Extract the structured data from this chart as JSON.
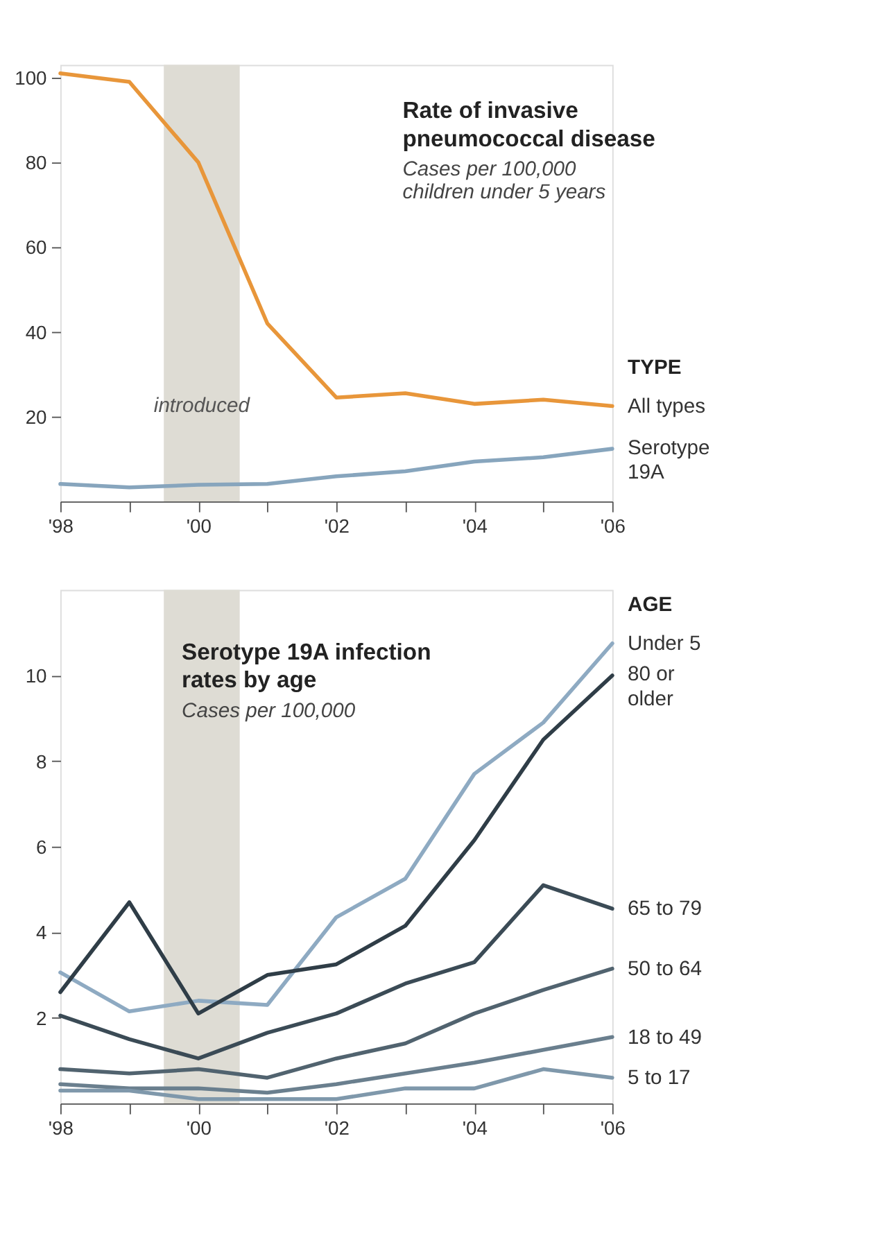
{
  "chart_data": [
    {
      "type": "line",
      "title": "Rate of invasive pneumococcal disease",
      "subtitle": "Cases per 100,000 children under 5 years",
      "legend_title": "TYPE",
      "legend": "right",
      "grid": false,
      "x": [
        1998,
        1999,
        2000,
        2001,
        2002,
        2003,
        2004,
        2005,
        2006
      ],
      "xlim": [
        1998,
        2006
      ],
      "xticks": [
        {
          "value": 1998,
          "label": "'98"
        },
        {
          "value": 1999,
          "label": null
        },
        {
          "value": 2000,
          "label": "'00"
        },
        {
          "value": 2001,
          "label": null
        },
        {
          "value": 2002,
          "label": "'02"
        },
        {
          "value": 2003,
          "label": null
        },
        {
          "value": 2004,
          "label": "'04"
        },
        {
          "value": 2005,
          "label": null
        },
        {
          "value": 2006,
          "label": "'06"
        }
      ],
      "ylim": [
        0,
        103
      ],
      "yticks": [
        20,
        40,
        60,
        80,
        100
      ],
      "bands": [
        {
          "axis": "x",
          "from": 1999.5,
          "to": 2000.6,
          "label": "introduced",
          "color": "#dedcd4"
        }
      ],
      "series": [
        {
          "name": "All types",
          "color": "#e8963a",
          "values": [
            101,
            99,
            80,
            42,
            24.5,
            25.5,
            23,
            24,
            22.5
          ]
        },
        {
          "name": "Serotype 19A",
          "color": "#87a5bd",
          "values": [
            4.1,
            3.3,
            3.9,
            4.1,
            5.9,
            7.1,
            9.4,
            10.4,
            12.4
          ]
        }
      ]
    },
    {
      "type": "line",
      "title": "Serotype 19A infection rates by age",
      "subtitle": "Cases per 100,000",
      "legend_title": "AGE",
      "legend": "right",
      "grid": false,
      "x": [
        1998,
        1999,
        2000,
        2001,
        2002,
        2003,
        2004,
        2005,
        2006
      ],
      "xlim": [
        1998,
        2006
      ],
      "xticks": [
        {
          "value": 1998,
          "label": "'98"
        },
        {
          "value": 1999,
          "label": null
        },
        {
          "value": 2000,
          "label": "'00"
        },
        {
          "value": 2001,
          "label": null
        },
        {
          "value": 2002,
          "label": "'02"
        },
        {
          "value": 2003,
          "label": null
        },
        {
          "value": 2004,
          "label": "'04"
        },
        {
          "value": 2005,
          "label": null
        },
        {
          "value": 2006,
          "label": "'06"
        }
      ],
      "ylim": [
        0,
        12
      ],
      "yticks": [
        2,
        4,
        6,
        8,
        10
      ],
      "bands": [
        {
          "axis": "x",
          "from": 1999.5,
          "to": 2000.6,
          "color": "#dedcd4"
        }
      ],
      "series": [
        {
          "name": "Under 5",
          "color": "#8eaac2",
          "values": [
            3.06,
            2.15,
            2.4,
            2.3,
            4.35,
            5.25,
            7.7,
            8.9,
            10.75
          ]
        },
        {
          "name": "80 or older",
          "color": "#2f3d47",
          "values": [
            2.6,
            4.7,
            2.1,
            3.0,
            3.25,
            4.15,
            6.15,
            8.5,
            10.0
          ]
        },
        {
          "name": "65 to 79",
          "color": "#3b4b56",
          "values": [
            2.05,
            1.5,
            1.05,
            1.65,
            2.1,
            2.8,
            3.3,
            5.1,
            4.55
          ]
        },
        {
          "name": "50 to 64",
          "color": "#51636f",
          "values": [
            0.8,
            0.7,
            0.8,
            0.6,
            1.05,
            1.4,
            2.1,
            2.65,
            3.15
          ]
        },
        {
          "name": "18 to 49",
          "color": "#6a7f8e",
          "values": [
            0.45,
            0.35,
            0.35,
            0.25,
            0.45,
            0.7,
            0.95,
            1.25,
            1.55
          ]
        },
        {
          "name": "5 to 17",
          "color": "#7f98ab",
          "values": [
            0.3,
            0.3,
            0.1,
            0.1,
            0.1,
            0.35,
            0.35,
            0.8,
            0.6
          ]
        }
      ]
    }
  ]
}
